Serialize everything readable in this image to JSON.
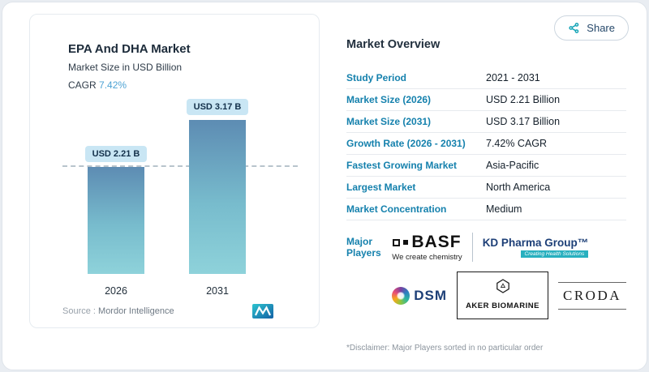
{
  "header": {
    "share_label": "Share"
  },
  "chart": {
    "title": "EPA And DHA Market",
    "subtitle": "Market Size in USD Billion",
    "cagr_label": "CAGR",
    "cagr_value": "7.42%",
    "source_label": "Source :",
    "source_value": "Mordor Intelligence"
  },
  "chart_data": {
    "type": "bar",
    "title": "EPA And DHA Market",
    "ylabel": "Market Size in USD Billion",
    "categories": [
      "2026",
      "2031"
    ],
    "values": [
      2.21,
      3.17
    ],
    "value_labels": [
      "USD 2.21 B",
      "USD 3.17 B"
    ],
    "ylim": [
      0,
      3.5
    ],
    "reference_line_at": 2.21,
    "grid": false,
    "bar_gradient": [
      "#5d8cb3",
      "#8ed2da"
    ],
    "cagr": "7.42%"
  },
  "overview": {
    "title": "Market Overview",
    "rows": [
      {
        "label": "Study Period",
        "value": "2021 - 2031"
      },
      {
        "label": "Market Size (2026)",
        "value": "USD 2.21 Billion"
      },
      {
        "label": "Market Size (2031)",
        "value": "USD 3.17 Billion"
      },
      {
        "label": "Growth Rate (2026 - 2031)",
        "value": "7.42% CAGR"
      },
      {
        "label": "Fastest Growing Market",
        "value": "Asia-Pacific"
      },
      {
        "label": "Largest Market",
        "value": "North America"
      },
      {
        "label": "Market Concentration",
        "value": "Medium"
      }
    ],
    "major_players_label": "Major Players",
    "players": {
      "basf": {
        "name": "BASF",
        "tagline": "We create chemistry"
      },
      "kd": {
        "name": "KD Pharma Group™",
        "tagline": "Creating Health Solutions"
      },
      "dsm": {
        "name": "DSM"
      },
      "aker": {
        "name": "AKER BIOMARINE"
      },
      "croda": {
        "name": "CRODA"
      }
    },
    "disclaimer": "*Disclaimer: Major Players sorted in no particular order"
  },
  "colors": {
    "accent_teal": "#19a6b8",
    "label_blue": "#1581ad",
    "pill_bg": "#c9e6f4"
  }
}
